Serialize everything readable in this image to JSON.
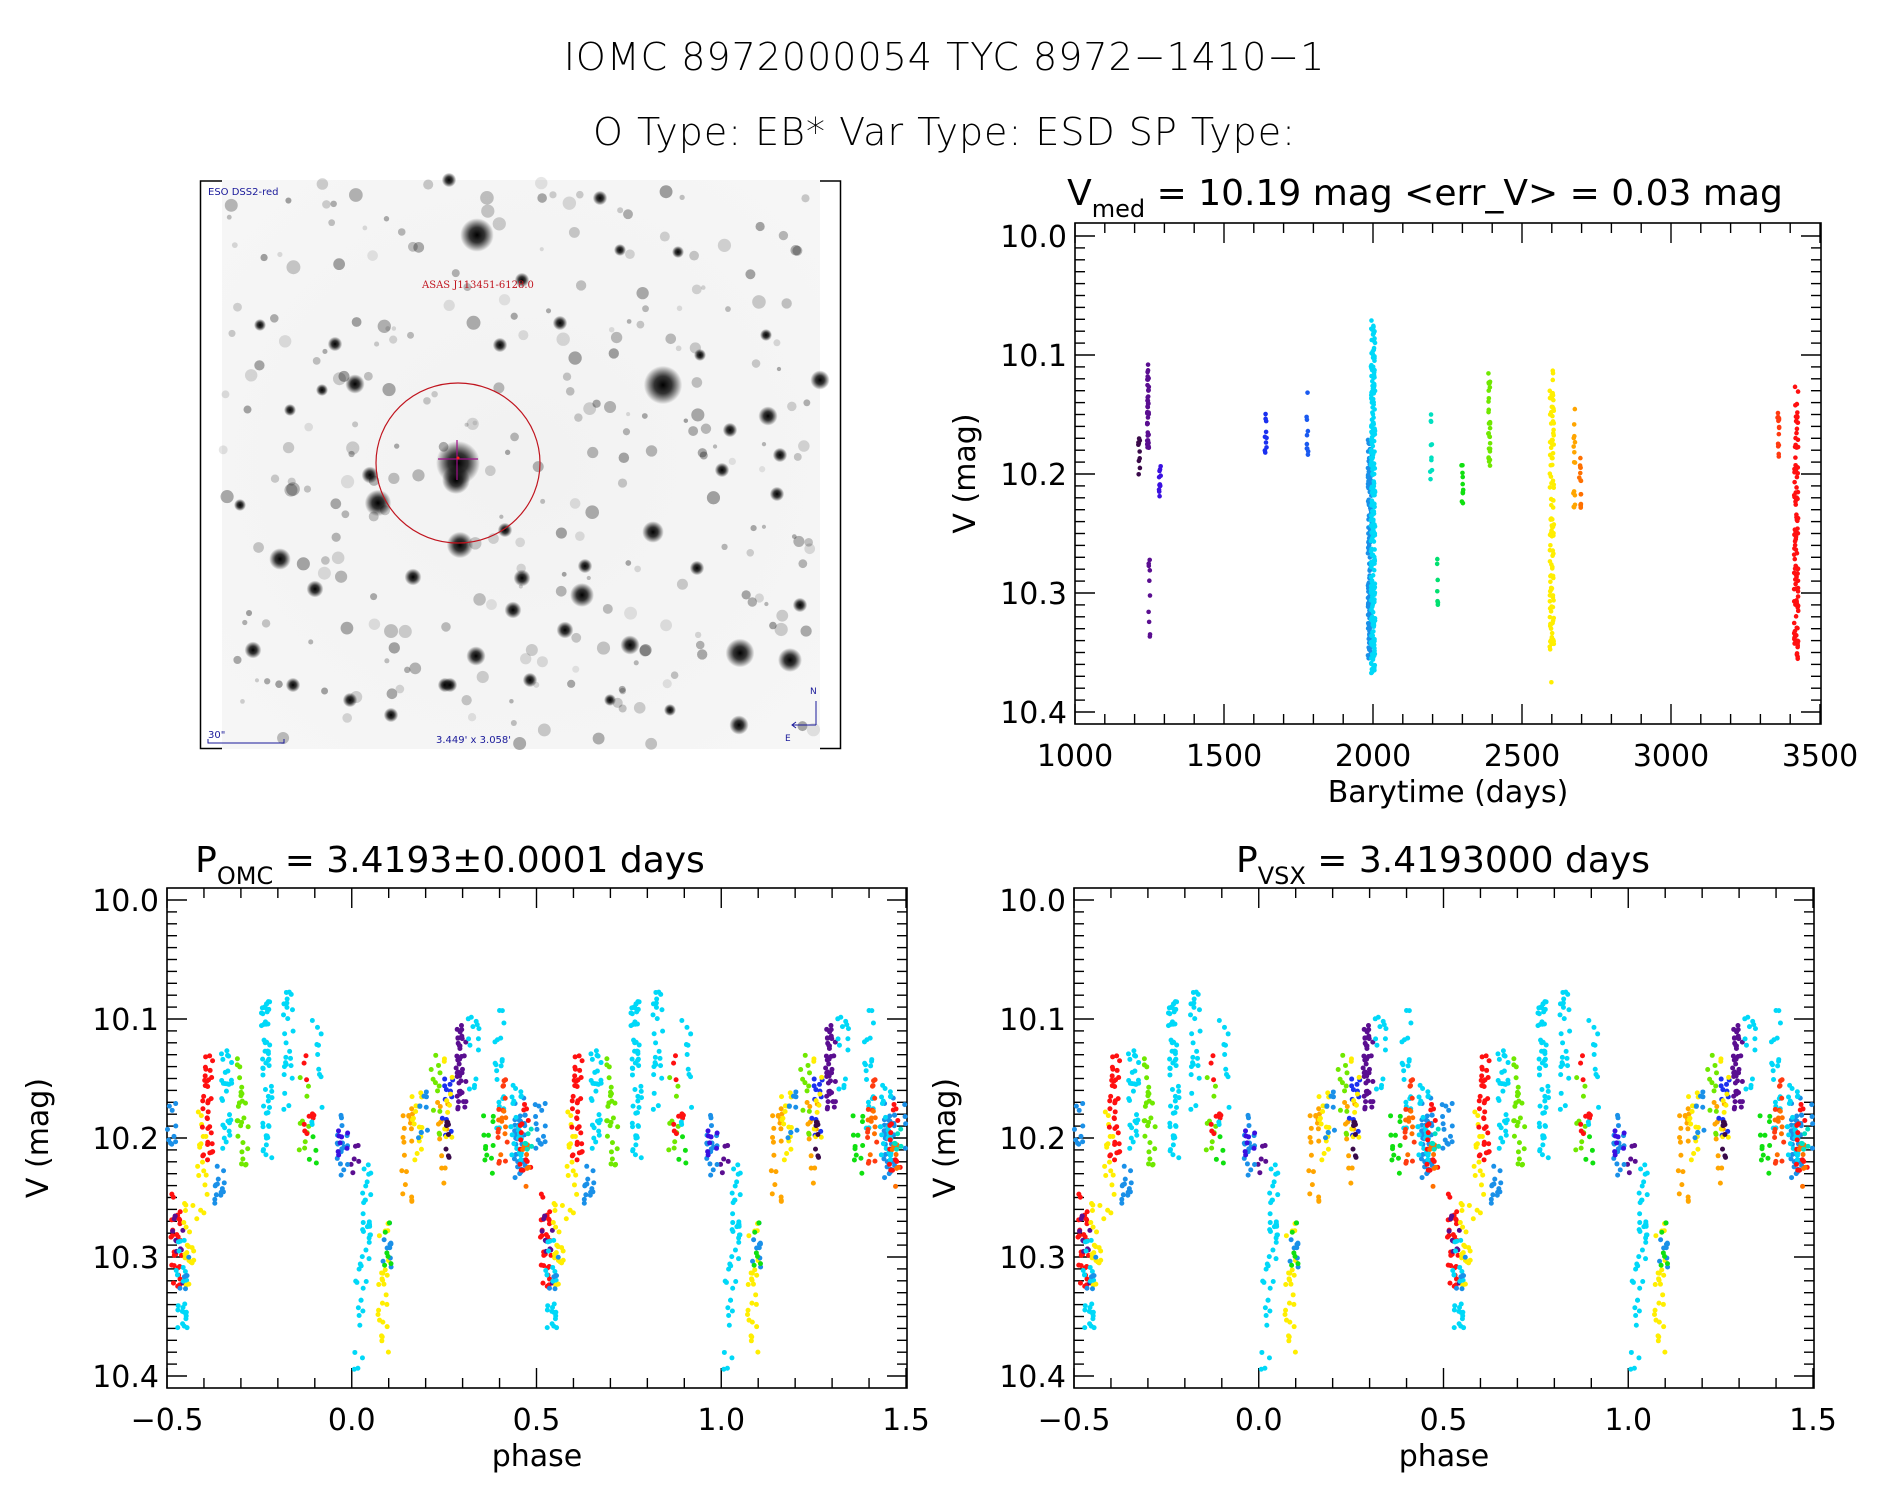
{
  "header": {
    "title_line1": "IOMC 8972000054    TYC 8972−1410−1",
    "title_line2": "O Type: EB*  Var Type: ESD  SP Type:"
  },
  "finder_chart": {
    "survey_label": "ESO DSS2-red",
    "target_label": "ASAS J113451-6128.0",
    "scale_bar_label": "30\"",
    "field_size_label": "3.449' x 3.058'",
    "compass_north": "N",
    "compass_east": "E",
    "colors": {
      "frame_text": "#1a1a9a",
      "target": "#c0141e",
      "crosshair": "#a0108a"
    }
  },
  "chart_data": [
    {
      "id": "light_curve",
      "type": "scatter",
      "title_main": "V",
      "title_sub": "med",
      "title_rest": " = 10.19 mag <err_V> = 0.03 mag",
      "xlabel": "Barytime (days)",
      "ylabel": "V (mag)",
      "xlim": [
        1000,
        3500
      ],
      "ylim": [
        10.0,
        10.4
      ],
      "y_inverted": true,
      "x_ticks": [
        1000,
        1500,
        2000,
        2500,
        3000,
        3500
      ],
      "x_tick_labels": [
        "1000",
        "1500",
        "2000",
        "2500",
        "3000",
        "3500"
      ],
      "y_ticks": [
        10.0,
        10.1,
        10.2,
        10.3,
        10.4
      ],
      "y_tick_labels": [
        "10.0",
        "10.1",
        "10.2",
        "10.3",
        "10.4"
      ],
      "grid": false,
      "clusters": [
        {
          "t": 1215,
          "vmin": 10.17,
          "vmax": 10.21,
          "n": 10,
          "color": "#3a0a4a"
        },
        {
          "t": 1245,
          "vmin": 10.105,
          "vmax": 10.18,
          "n": 45,
          "color": "#5a0e90"
        },
        {
          "t": 1250,
          "vmin": 10.27,
          "vmax": 10.34,
          "n": 10,
          "color": "#5a0e90"
        },
        {
          "t": 1285,
          "vmin": 10.19,
          "vmax": 10.225,
          "n": 12,
          "color": "#3a10e0"
        },
        {
          "t": 1640,
          "vmin": 10.14,
          "vmax": 10.185,
          "n": 10,
          "color": "#1a30f0"
        },
        {
          "t": 1780,
          "vmin": 10.115,
          "vmax": 10.19,
          "n": 10,
          "color": "#1a5af0"
        },
        {
          "t": 1990,
          "vmin": 10.17,
          "vmax": 10.355,
          "n": 160,
          "color": "#1a90e8"
        },
        {
          "t": 2000,
          "vmin": 10.07,
          "vmax": 10.37,
          "n": 260,
          "color": "#00d8f8"
        },
        {
          "t": 2195,
          "vmin": 10.15,
          "vmax": 10.235,
          "n": 10,
          "color": "#00e0c0"
        },
        {
          "t": 2215,
          "vmin": 10.265,
          "vmax": 10.32,
          "n": 7,
          "color": "#00e070"
        },
        {
          "t": 2300,
          "vmin": 10.19,
          "vmax": 10.225,
          "n": 10,
          "color": "#10e010"
        },
        {
          "t": 2390,
          "vmin": 10.115,
          "vmax": 10.2,
          "n": 28,
          "color": "#70e800"
        },
        {
          "t": 2600,
          "vmin": 10.11,
          "vmax": 10.35,
          "n": 110,
          "color": "#ffee00"
        },
        {
          "t": 2600,
          "vmin": 10.375,
          "vmax": 10.38,
          "n": 1,
          "color": "#ffee00"
        },
        {
          "t": 2675,
          "vmin": 10.145,
          "vmax": 10.23,
          "n": 15,
          "color": "#ffa500"
        },
        {
          "t": 2695,
          "vmin": 10.17,
          "vmax": 10.235,
          "n": 14,
          "color": "#ff7000"
        },
        {
          "t": 3360,
          "vmin": 10.145,
          "vmax": 10.195,
          "n": 14,
          "color": "#ff3a10"
        },
        {
          "t": 3420,
          "vmin": 10.125,
          "vmax": 10.36,
          "n": 110,
          "color": "#ff1010"
        }
      ]
    },
    {
      "id": "phase_omc",
      "type": "scatter",
      "title_main": "P",
      "title_sub": "OMC",
      "title_rest": " = 3.4193±0.0001 days",
      "xlabel": "phase",
      "ylabel": "V (mag)",
      "xlim": [
        -0.5,
        1.5
      ],
      "ylim": [
        10.0,
        10.4
      ],
      "y_inverted": true,
      "x_ticks": [
        -0.5,
        0.0,
        0.5,
        1.0,
        1.5
      ],
      "x_tick_labels": [
        "−0.5",
        "0.0",
        "0.5",
        "1.0",
        "1.5"
      ],
      "y_ticks": [
        10.0,
        10.1,
        10.2,
        10.3,
        10.4
      ],
      "y_tick_labels": [
        "10.0",
        "10.1",
        "10.2",
        "10.3",
        "10.4"
      ],
      "grid": false,
      "period_days": 3.4193,
      "period_error_days": 0.0001
    },
    {
      "id": "phase_vsx",
      "type": "scatter",
      "title_main": "P",
      "title_sub": "VSX",
      "title_rest": " = 3.4193000 days",
      "xlabel": "phase",
      "ylabel": "V (mag)",
      "xlim": [
        -0.5,
        1.5
      ],
      "ylim": [
        10.0,
        10.4
      ],
      "y_inverted": true,
      "x_ticks": [
        -0.5,
        0.0,
        0.5,
        1.0,
        1.5
      ],
      "x_tick_labels": [
        "−0.5",
        "0.0",
        "0.5",
        "1.0",
        "1.5"
      ],
      "y_ticks": [
        10.0,
        10.1,
        10.2,
        10.3,
        10.4
      ],
      "y_tick_labels": [
        "10.0",
        "10.1",
        "10.2",
        "10.3",
        "10.4"
      ],
      "grid": false,
      "period_days": 3.4193
    }
  ],
  "phase_curve": {
    "note_pattern": "phase groups (0..1), repeated at phase-1 and phase+1",
    "groups": [
      {
        "p": 0.04,
        "vmin": 10.215,
        "vmax": 10.33,
        "n": 30,
        "color": "#00d8f8"
      },
      {
        "p": 0.005,
        "vmin": 10.205,
        "vmax": 10.235,
        "n": 6,
        "color": "#5a0e90"
      },
      {
        "p": 0.02,
        "vmin": 10.3,
        "vmax": 10.4,
        "n": 14,
        "color": "#00d8f8"
      },
      {
        "p": 0.085,
        "vmin": 10.27,
        "vmax": 10.38,
        "n": 25,
        "color": "#ffee00"
      },
      {
        "p": 0.095,
        "vmin": 10.27,
        "vmax": 10.31,
        "n": 10,
        "color": "#1a90e8"
      },
      {
        "p": 0.1,
        "vmin": 10.27,
        "vmax": 10.32,
        "n": 6,
        "color": "#10e010"
      },
      {
        "p": 0.15,
        "vmin": 10.175,
        "vmax": 10.26,
        "n": 20,
        "color": "#ffa500"
      },
      {
        "p": 0.175,
        "vmin": 10.16,
        "vmax": 10.22,
        "n": 16,
        "color": "#ffee00"
      },
      {
        "p": 0.19,
        "vmin": 10.16,
        "vmax": 10.2,
        "n": 10,
        "color": "#1a90e8"
      },
      {
        "p": 0.23,
        "vmin": 10.12,
        "vmax": 10.2,
        "n": 12,
        "color": "#70e800"
      },
      {
        "p": 0.245,
        "vmin": 10.17,
        "vmax": 10.24,
        "n": 12,
        "color": "#ffa500"
      },
      {
        "p": 0.26,
        "vmin": 10.15,
        "vmax": 10.21,
        "n": 12,
        "color": "#1a30f0"
      },
      {
        "p": 0.265,
        "vmin": 10.11,
        "vmax": 10.2,
        "n": 10,
        "color": "#ffee00"
      },
      {
        "p": 0.27,
        "vmin": 10.18,
        "vmax": 10.22,
        "n": 8,
        "color": "#3a0a4a"
      },
      {
        "p": 0.295,
        "vmin": 10.105,
        "vmax": 10.18,
        "n": 40,
        "color": "#5a0e90"
      },
      {
        "p": 0.33,
        "vmin": 10.095,
        "vmax": 10.16,
        "n": 14,
        "color": "#00d8f8"
      },
      {
        "p": 0.37,
        "vmin": 10.18,
        "vmax": 10.23,
        "n": 12,
        "color": "#10e010"
      },
      {
        "p": 0.4,
        "vmin": 10.09,
        "vmax": 10.2,
        "n": 20,
        "color": "#00d8f8"
      },
      {
        "p": 0.41,
        "vmin": 10.15,
        "vmax": 10.225,
        "n": 14,
        "color": "#ff3a10"
      },
      {
        "p": 0.405,
        "vmin": 10.175,
        "vmax": 10.235,
        "n": 8,
        "color": "#ff7000"
      },
      {
        "p": 0.455,
        "vmin": 10.16,
        "vmax": 10.235,
        "n": 40,
        "color": "#1a90e8"
      },
      {
        "p": 0.445,
        "vmin": 10.15,
        "vmax": 10.22,
        "n": 30,
        "color": "#00d8f8"
      },
      {
        "p": 0.47,
        "vmin": 10.17,
        "vmax": 10.23,
        "n": 16,
        "color": "#ff1010"
      },
      {
        "p": 0.475,
        "vmin": 10.2,
        "vmax": 10.245,
        "n": 8,
        "color": "#ff7000"
      },
      {
        "p": 0.48,
        "vmin": 10.19,
        "vmax": 10.215,
        "n": 6,
        "color": "#00e0c0"
      },
      {
        "p": 0.51,
        "vmin": 10.165,
        "vmax": 10.21,
        "n": 14,
        "color": "#1a90e8"
      },
      {
        "p": 0.525,
        "vmin": 10.245,
        "vmax": 10.33,
        "n": 30,
        "color": "#ff1010"
      },
      {
        "p": 0.53,
        "vmin": 10.265,
        "vmax": 10.33,
        "n": 10,
        "color": "#5a0e90"
      },
      {
        "p": 0.54,
        "vmin": 10.28,
        "vmax": 10.36,
        "n": 24,
        "color": "#00d8f8"
      },
      {
        "p": 0.56,
        "vmin": 10.255,
        "vmax": 10.33,
        "n": 20,
        "color": "#ffee00"
      },
      {
        "p": 0.55,
        "vmin": 10.3,
        "vmax": 10.34,
        "n": 6,
        "color": "#1a90e8"
      },
      {
        "p": 0.595,
        "vmin": 10.17,
        "vmax": 10.27,
        "n": 18,
        "color": "#ffee00"
      },
      {
        "p": 0.61,
        "vmin": 10.13,
        "vmax": 10.22,
        "n": 35,
        "color": "#ff1010"
      },
      {
        "p": 0.64,
        "vmin": 10.22,
        "vmax": 10.255,
        "n": 14,
        "color": "#1a90e8"
      },
      {
        "p": 0.66,
        "vmin": 10.125,
        "vmax": 10.22,
        "n": 30,
        "color": "#00d8f8"
      },
      {
        "p": 0.705,
        "vmin": 10.13,
        "vmax": 10.225,
        "n": 26,
        "color": "#70e800"
      },
      {
        "p": 0.77,
        "vmin": 10.08,
        "vmax": 10.22,
        "n": 55,
        "color": "#00d8f8"
      },
      {
        "p": 0.83,
        "vmin": 10.075,
        "vmax": 10.18,
        "n": 25,
        "color": "#00d8f8"
      },
      {
        "p": 0.87,
        "vmin": 10.13,
        "vmax": 10.22,
        "n": 10,
        "color": "#70e800"
      },
      {
        "p": 0.885,
        "vmin": 10.13,
        "vmax": 10.2,
        "n": 10,
        "color": "#ff1010"
      },
      {
        "p": 0.905,
        "vmin": 10.1,
        "vmax": 10.19,
        "n": 12,
        "color": "#00d8f8"
      },
      {
        "p": 0.895,
        "vmin": 10.19,
        "vmax": 10.23,
        "n": 4,
        "color": "#10e010"
      },
      {
        "p": 0.975,
        "vmin": 10.18,
        "vmax": 10.235,
        "n": 18,
        "color": "#1a90e8"
      },
      {
        "p": 0.975,
        "vmin": 10.19,
        "vmax": 10.225,
        "n": 8,
        "color": "#3a10e0"
      }
    ]
  }
}
